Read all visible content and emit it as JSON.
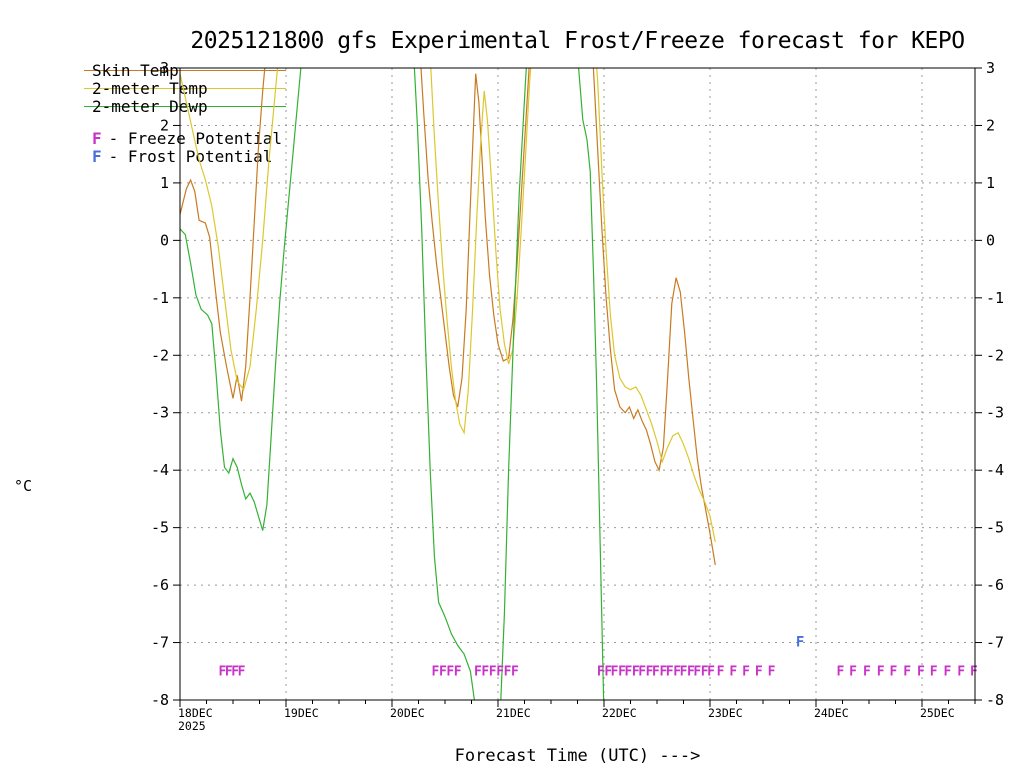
{
  "title": "2025121800 gfs Experimental Frost/Freeze forecast for KEPO",
  "y_unit_label": "°C",
  "x_axis_title": "Forecast Time (UTC) --->",
  "base_year": "2025",
  "legend": {
    "series_items": [
      {
        "label": "Skin Temp",
        "color": "#c87a21"
      },
      {
        "label": "2-meter Temp",
        "color": "#ddc72e"
      },
      {
        "label": "2-meter Dewp",
        "color": "#33b133"
      }
    ],
    "flag_items": [
      {
        "letter": "F",
        "label": "- Freeze Potential",
        "color": "#c633c6"
      },
      {
        "letter": "F",
        "label": "- Frost Potential",
        "color": "#4a6fdc"
      }
    ]
  },
  "chart_data": {
    "type": "line",
    "title": "2025121800 gfs Experimental Frost/Freeze forecast for KEPO",
    "xlabel": "Forecast Time (UTC) --->",
    "ylabel": "°C",
    "grid": true,
    "ylim": [
      -8,
      3
    ],
    "xlim_days": [
      0,
      7.5
    ],
    "y_ticks": [
      3,
      2,
      1,
      0,
      -1,
      -2,
      -3,
      -4,
      -5,
      -6,
      -7,
      -8
    ],
    "x_ticks": [
      {
        "day": 0,
        "label": "18DEC"
      },
      {
        "day": 1,
        "label": "19DEC"
      },
      {
        "day": 2,
        "label": "20DEC"
      },
      {
        "day": 3,
        "label": "21DEC"
      },
      {
        "day": 4,
        "label": "22DEC"
      },
      {
        "day": 5,
        "label": "23DEC"
      },
      {
        "day": 6,
        "label": "24DEC"
      },
      {
        "day": 7,
        "label": "25DEC"
      }
    ],
    "series": [
      {
        "name": "Skin Temp",
        "color": "#c87a21",
        "points": [
          [
            0,
            0.45
          ],
          [
            0.06,
            0.9
          ],
          [
            0.1,
            1.05
          ],
          [
            0.14,
            0.85
          ],
          [
            0.18,
            0.35
          ],
          [
            0.24,
            0.3
          ],
          [
            0.28,
            0.05
          ],
          [
            0.33,
            -0.8
          ],
          [
            0.38,
            -1.6
          ],
          [
            0.44,
            -2.2
          ],
          [
            0.5,
            -2.75
          ],
          [
            0.54,
            -2.35
          ],
          [
            0.58,
            -2.8
          ],
          [
            0.62,
            -2.2
          ],
          [
            0.66,
            -1.0
          ],
          [
            0.7,
            0.3
          ],
          [
            0.74,
            1.6
          ],
          [
            0.78,
            2.6
          ],
          [
            0.83,
            3.6
          ],
          [
            0.9,
            4.5
          ],
          [
            2.18,
            4.5
          ],
          [
            2.26,
            3.4
          ],
          [
            2.3,
            2.2
          ],
          [
            2.34,
            1.1
          ],
          [
            2.38,
            0.3
          ],
          [
            2.42,
            -0.4
          ],
          [
            2.46,
            -1.0
          ],
          [
            2.5,
            -1.6
          ],
          [
            2.54,
            -2.2
          ],
          [
            2.58,
            -2.7
          ],
          [
            2.62,
            -2.9
          ],
          [
            2.66,
            -2.4
          ],
          [
            2.7,
            -1.2
          ],
          [
            2.73,
            0.2
          ],
          [
            2.76,
            1.6
          ],
          [
            2.79,
            2.9
          ],
          [
            2.82,
            2.4
          ],
          [
            2.85,
            1.4
          ],
          [
            2.88,
            0.4
          ],
          [
            2.92,
            -0.6
          ],
          [
            2.96,
            -1.3
          ],
          [
            3.0,
            -1.8
          ],
          [
            3.05,
            -2.1
          ],
          [
            3.1,
            -2.05
          ],
          [
            3.14,
            -1.4
          ],
          [
            3.18,
            -0.4
          ],
          [
            3.22,
            0.8
          ],
          [
            3.26,
            2.0
          ],
          [
            3.3,
            3.2
          ],
          [
            3.36,
            4.5
          ],
          [
            3.84,
            4.5
          ],
          [
            3.9,
            3.0
          ],
          [
            3.94,
            1.6
          ],
          [
            3.98,
            0.2
          ],
          [
            4.02,
            -1.0
          ],
          [
            4.06,
            -1.9
          ],
          [
            4.1,
            -2.6
          ],
          [
            4.15,
            -2.9
          ],
          [
            4.2,
            -3.0
          ],
          [
            4.24,
            -2.9
          ],
          [
            4.28,
            -3.1
          ],
          [
            4.32,
            -2.95
          ],
          [
            4.36,
            -3.15
          ],
          [
            4.4,
            -3.3
          ],
          [
            4.44,
            -3.55
          ],
          [
            4.48,
            -3.85
          ],
          [
            4.52,
            -4.0
          ],
          [
            4.56,
            -3.6
          ],
          [
            4.6,
            -2.4
          ],
          [
            4.64,
            -1.1
          ],
          [
            4.68,
            -0.65
          ],
          [
            4.72,
            -0.9
          ],
          [
            4.76,
            -1.6
          ],
          [
            4.8,
            -2.4
          ],
          [
            4.84,
            -3.1
          ],
          [
            4.88,
            -3.8
          ],
          [
            4.92,
            -4.3
          ],
          [
            4.96,
            -4.7
          ],
          [
            5.0,
            -5.1
          ],
          [
            5.05,
            -5.65
          ]
        ]
      },
      {
        "name": "2-meter Temp",
        "color": "#ddc72e",
        "points": [
          [
            0,
            2.9
          ],
          [
            0.06,
            2.4
          ],
          [
            0.12,
            1.9
          ],
          [
            0.18,
            1.4
          ],
          [
            0.24,
            1.05
          ],
          [
            0.3,
            0.6
          ],
          [
            0.36,
            -0.1
          ],
          [
            0.42,
            -1.0
          ],
          [
            0.48,
            -1.9
          ],
          [
            0.54,
            -2.45
          ],
          [
            0.6,
            -2.6
          ],
          [
            0.66,
            -2.2
          ],
          [
            0.72,
            -1.2
          ],
          [
            0.78,
            0.0
          ],
          [
            0.84,
            1.4
          ],
          [
            0.9,
            2.6
          ],
          [
            0.97,
            4.0
          ],
          [
            2.28,
            4.2
          ],
          [
            2.36,
            3.2
          ],
          [
            2.4,
            1.8
          ],
          [
            2.44,
            0.6
          ],
          [
            2.48,
            -0.5
          ],
          [
            2.52,
            -1.4
          ],
          [
            2.56,
            -2.2
          ],
          [
            2.6,
            -2.8
          ],
          [
            2.64,
            -3.2
          ],
          [
            2.68,
            -3.35
          ],
          [
            2.72,
            -2.6
          ],
          [
            2.76,
            -1.2
          ],
          [
            2.8,
            0.4
          ],
          [
            2.84,
            1.8
          ],
          [
            2.87,
            2.6
          ],
          [
            2.9,
            2.1
          ],
          [
            2.94,
            1.0
          ],
          [
            2.98,
            -0.2
          ],
          [
            3.02,
            -1.2
          ],
          [
            3.06,
            -1.8
          ],
          [
            3.1,
            -2.15
          ],
          [
            3.14,
            -1.9
          ],
          [
            3.18,
            -1.0
          ],
          [
            3.22,
            0.2
          ],
          [
            3.26,
            1.5
          ],
          [
            3.3,
            2.8
          ],
          [
            3.36,
            4.2
          ],
          [
            3.88,
            4.2
          ],
          [
            3.94,
            2.8
          ],
          [
            3.98,
            1.2
          ],
          [
            4.02,
            -0.2
          ],
          [
            4.06,
            -1.3
          ],
          [
            4.1,
            -2.0
          ],
          [
            4.15,
            -2.4
          ],
          [
            4.2,
            -2.55
          ],
          [
            4.25,
            -2.6
          ],
          [
            4.3,
            -2.55
          ],
          [
            4.35,
            -2.7
          ],
          [
            4.4,
            -2.95
          ],
          [
            4.45,
            -3.2
          ],
          [
            4.5,
            -3.5
          ],
          [
            4.55,
            -3.85
          ],
          [
            4.6,
            -3.6
          ],
          [
            4.65,
            -3.4
          ],
          [
            4.7,
            -3.35
          ],
          [
            4.75,
            -3.55
          ],
          [
            4.8,
            -3.8
          ],
          [
            4.85,
            -4.1
          ],
          [
            4.9,
            -4.35
          ],
          [
            4.95,
            -4.55
          ],
          [
            5.0,
            -4.8
          ],
          [
            5.05,
            -5.25
          ]
        ]
      },
      {
        "name": "2-meter Dewp",
        "color": "#33b133",
        "points": [
          [
            0,
            0.2
          ],
          [
            0.05,
            0.1
          ],
          [
            0.1,
            -0.4
          ],
          [
            0.15,
            -0.95
          ],
          [
            0.2,
            -1.2
          ],
          [
            0.26,
            -1.3
          ],
          [
            0.3,
            -1.45
          ],
          [
            0.34,
            -2.3
          ],
          [
            0.38,
            -3.3
          ],
          [
            0.42,
            -3.95
          ],
          [
            0.46,
            -4.05
          ],
          [
            0.5,
            -3.8
          ],
          [
            0.54,
            -3.95
          ],
          [
            0.58,
            -4.25
          ],
          [
            0.62,
            -4.5
          ],
          [
            0.66,
            -4.4
          ],
          [
            0.7,
            -4.55
          ],
          [
            0.74,
            -4.8
          ],
          [
            0.78,
            -5.05
          ],
          [
            0.82,
            -4.6
          ],
          [
            0.86,
            -3.4
          ],
          [
            0.9,
            -2.2
          ],
          [
            0.94,
            -1.1
          ],
          [
            0.98,
            -0.2
          ],
          [
            1.02,
            0.6
          ],
          [
            1.06,
            1.4
          ],
          [
            1.1,
            2.2
          ],
          [
            1.16,
            3.4
          ],
          [
            1.22,
            4.5
          ],
          [
            2.14,
            4.5
          ],
          [
            2.2,
            3.4
          ],
          [
            2.24,
            2.0
          ],
          [
            2.28,
            0.2
          ],
          [
            2.32,
            -2.0
          ],
          [
            2.36,
            -4.0
          ],
          [
            2.4,
            -5.5
          ],
          [
            2.44,
            -6.3
          ],
          [
            2.5,
            -6.55
          ],
          [
            2.56,
            -6.85
          ],
          [
            2.62,
            -7.05
          ],
          [
            2.68,
            -7.2
          ],
          [
            2.74,
            -7.5
          ],
          [
            2.8,
            -8.3
          ],
          [
            3.02,
            -8.3
          ],
          [
            3.06,
            -6.5
          ],
          [
            3.1,
            -4.0
          ],
          [
            3.15,
            -1.5
          ],
          [
            3.2,
            0.8
          ],
          [
            3.26,
            2.8
          ],
          [
            3.32,
            4.5
          ],
          [
            3.72,
            4.5
          ],
          [
            3.76,
            3.0
          ],
          [
            3.8,
            2.1
          ],
          [
            3.84,
            1.75
          ],
          [
            3.87,
            1.2
          ],
          [
            3.9,
            -0.5
          ],
          [
            3.93,
            -2.5
          ],
          [
            3.96,
            -5.0
          ],
          [
            4.0,
            -8.3
          ]
        ]
      }
    ],
    "freeze_potential": {
      "letter": "F",
      "color": "#c633c6",
      "y": -7.5,
      "days": [
        0.4,
        0.46,
        0.52,
        0.58,
        2.41,
        2.48,
        2.55,
        2.62,
        2.81,
        2.88,
        2.95,
        3.02,
        3.09,
        3.16,
        3.97,
        4.04,
        4.1,
        4.17,
        4.23,
        4.3,
        4.36,
        4.43,
        4.49,
        4.56,
        4.62,
        4.69,
        4.75,
        4.82,
        4.88,
        4.95,
        5.01,
        5.1,
        5.22,
        5.34,
        5.46,
        5.58,
        6.23,
        6.35,
        6.48,
        6.61,
        6.73,
        6.86,
        6.99,
        7.11,
        7.24,
        7.37,
        7.49
      ]
    },
    "frost_potential": {
      "letter": "F",
      "color": "#4a6fdc",
      "y": -7.0,
      "days": [
        5.85
      ]
    }
  }
}
